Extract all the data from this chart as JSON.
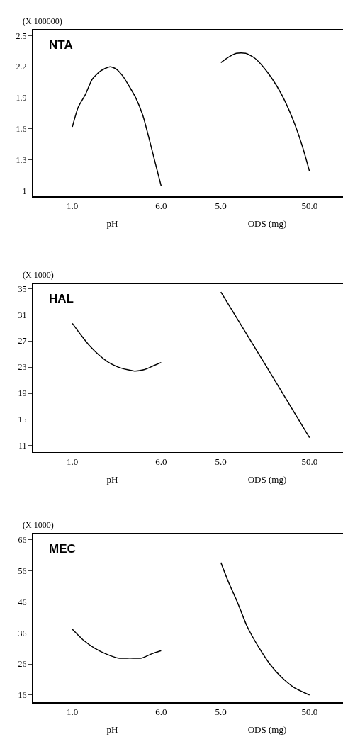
{
  "chart_data": [
    {
      "type": "line",
      "title": "NTA",
      "ylabel": "(X 100000)",
      "xlabel": "pH",
      "xlim": [
        -1.2,
        7.7
      ],
      "xticks": [
        {
          "value": 1,
          "label": "1.0"
        },
        {
          "value": 6,
          "label": "6.0"
        }
      ],
      "ylim": [
        0.95,
        2.55
      ],
      "yticks": [
        1,
        1.3,
        1.6,
        1.9,
        2.2,
        2.5
      ],
      "series": [
        {
          "color": "#000000",
          "x": [
            1.0,
            1.33,
            1.73,
            2.12,
            2.59,
            3.12,
            3.45,
            3.84,
            4.17,
            4.57,
            4.97,
            5.3,
            5.7,
            6.0
          ],
          "values": [
            1.62,
            1.81,
            1.93,
            2.08,
            2.16,
            2.2,
            2.18,
            2.11,
            2.02,
            1.9,
            1.73,
            1.52,
            1.25,
            1.05
          ]
        }
      ]
    },
    {
      "type": "line",
      "xlabel": "ODS (mg)",
      "xlim": [
        -10,
        67
      ],
      "xticks": [
        {
          "value": 5,
          "label": "5.0"
        },
        {
          "value": 50,
          "label": "50.0"
        }
      ],
      "ylim": [
        0.95,
        2.55
      ],
      "tick_labels": "x",
      "series": [
        {
          "color": "#000000",
          "x": [
            5,
            8.6,
            12.8,
            17.6,
            22.4,
            26,
            30.8,
            35.6,
            41.6,
            46.4,
            50
          ],
          "values": [
            2.24,
            2.29,
            2.33,
            2.33,
            2.28,
            2.21,
            2.09,
            1.94,
            1.69,
            1.43,
            1.19
          ]
        }
      ]
    },
    {
      "type": "line",
      "title": "HAL",
      "ylabel": "(X 1000)",
      "xlabel": "pH",
      "xlim": [
        -1.2,
        7.7
      ],
      "xticks": [
        {
          "value": 1,
          "label": "1.0"
        },
        {
          "value": 6,
          "label": "6.0"
        }
      ],
      "ylim": [
        10,
        35.7
      ],
      "yticks": [
        11,
        15,
        19,
        23,
        27,
        31,
        35
      ],
      "series": [
        {
          "color": "#000000",
          "x": [
            1.0,
            1.46,
            1.99,
            2.52,
            3.05,
            3.58,
            4.11,
            4.5,
            5.03,
            5.56,
            6.0
          ],
          "values": [
            29.7,
            28.0,
            26.2,
            24.8,
            23.7,
            23.0,
            22.6,
            22.4,
            22.6,
            23.2,
            23.7
          ]
        }
      ]
    },
    {
      "type": "line",
      "xlabel": "ODS (mg)",
      "xlim": [
        -10,
        67
      ],
      "xticks": [
        {
          "value": 5,
          "label": "5.0"
        },
        {
          "value": 50,
          "label": "50.0"
        }
      ],
      "ylim": [
        10,
        35.7
      ],
      "tick_labels": "x",
      "series": [
        {
          "color": "#000000",
          "x": [
            5,
            27.5,
            50
          ],
          "values": [
            34.5,
            23.4,
            12.2
          ]
        }
      ]
    },
    {
      "type": "line",
      "title": "MEC",
      "ylabel": "(X 1000)",
      "xlabel": "pH",
      "xlim": [
        -1.2,
        7.7
      ],
      "xticks": [
        {
          "value": 1,
          "label": "1.0"
        },
        {
          "value": 6,
          "label": "6.0"
        }
      ],
      "ylim": [
        13.7,
        67.8
      ],
      "yticks": [
        16,
        26,
        36,
        46,
        56,
        66
      ],
      "series": [
        {
          "color": "#000000",
          "x": [
            1.0,
            1.6,
            2.26,
            2.92,
            3.58,
            4.24,
            4.9,
            5.43,
            6.0
          ],
          "values": [
            37.2,
            33.8,
            31.1,
            29.2,
            27.9,
            27.9,
            27.9,
            29.2,
            30.3
          ]
        }
      ]
    },
    {
      "type": "line",
      "xlabel": "ODS (mg)",
      "xlim": [
        -10,
        67
      ],
      "xticks": [
        {
          "value": 5,
          "label": "5.0"
        },
        {
          "value": 50,
          "label": "50.0"
        }
      ],
      "ylim": [
        13.7,
        67.8
      ],
      "tick_labels": "x",
      "series": [
        {
          "color": "#000000",
          "x": [
            5,
            8.6,
            13.4,
            18.2,
            24.2,
            30.2,
            36.2,
            42.2,
            50
          ],
          "values": [
            58.7,
            52.8,
            45.9,
            38.3,
            31.4,
            25.7,
            21.5,
            18.4,
            16.0
          ]
        }
      ]
    }
  ]
}
